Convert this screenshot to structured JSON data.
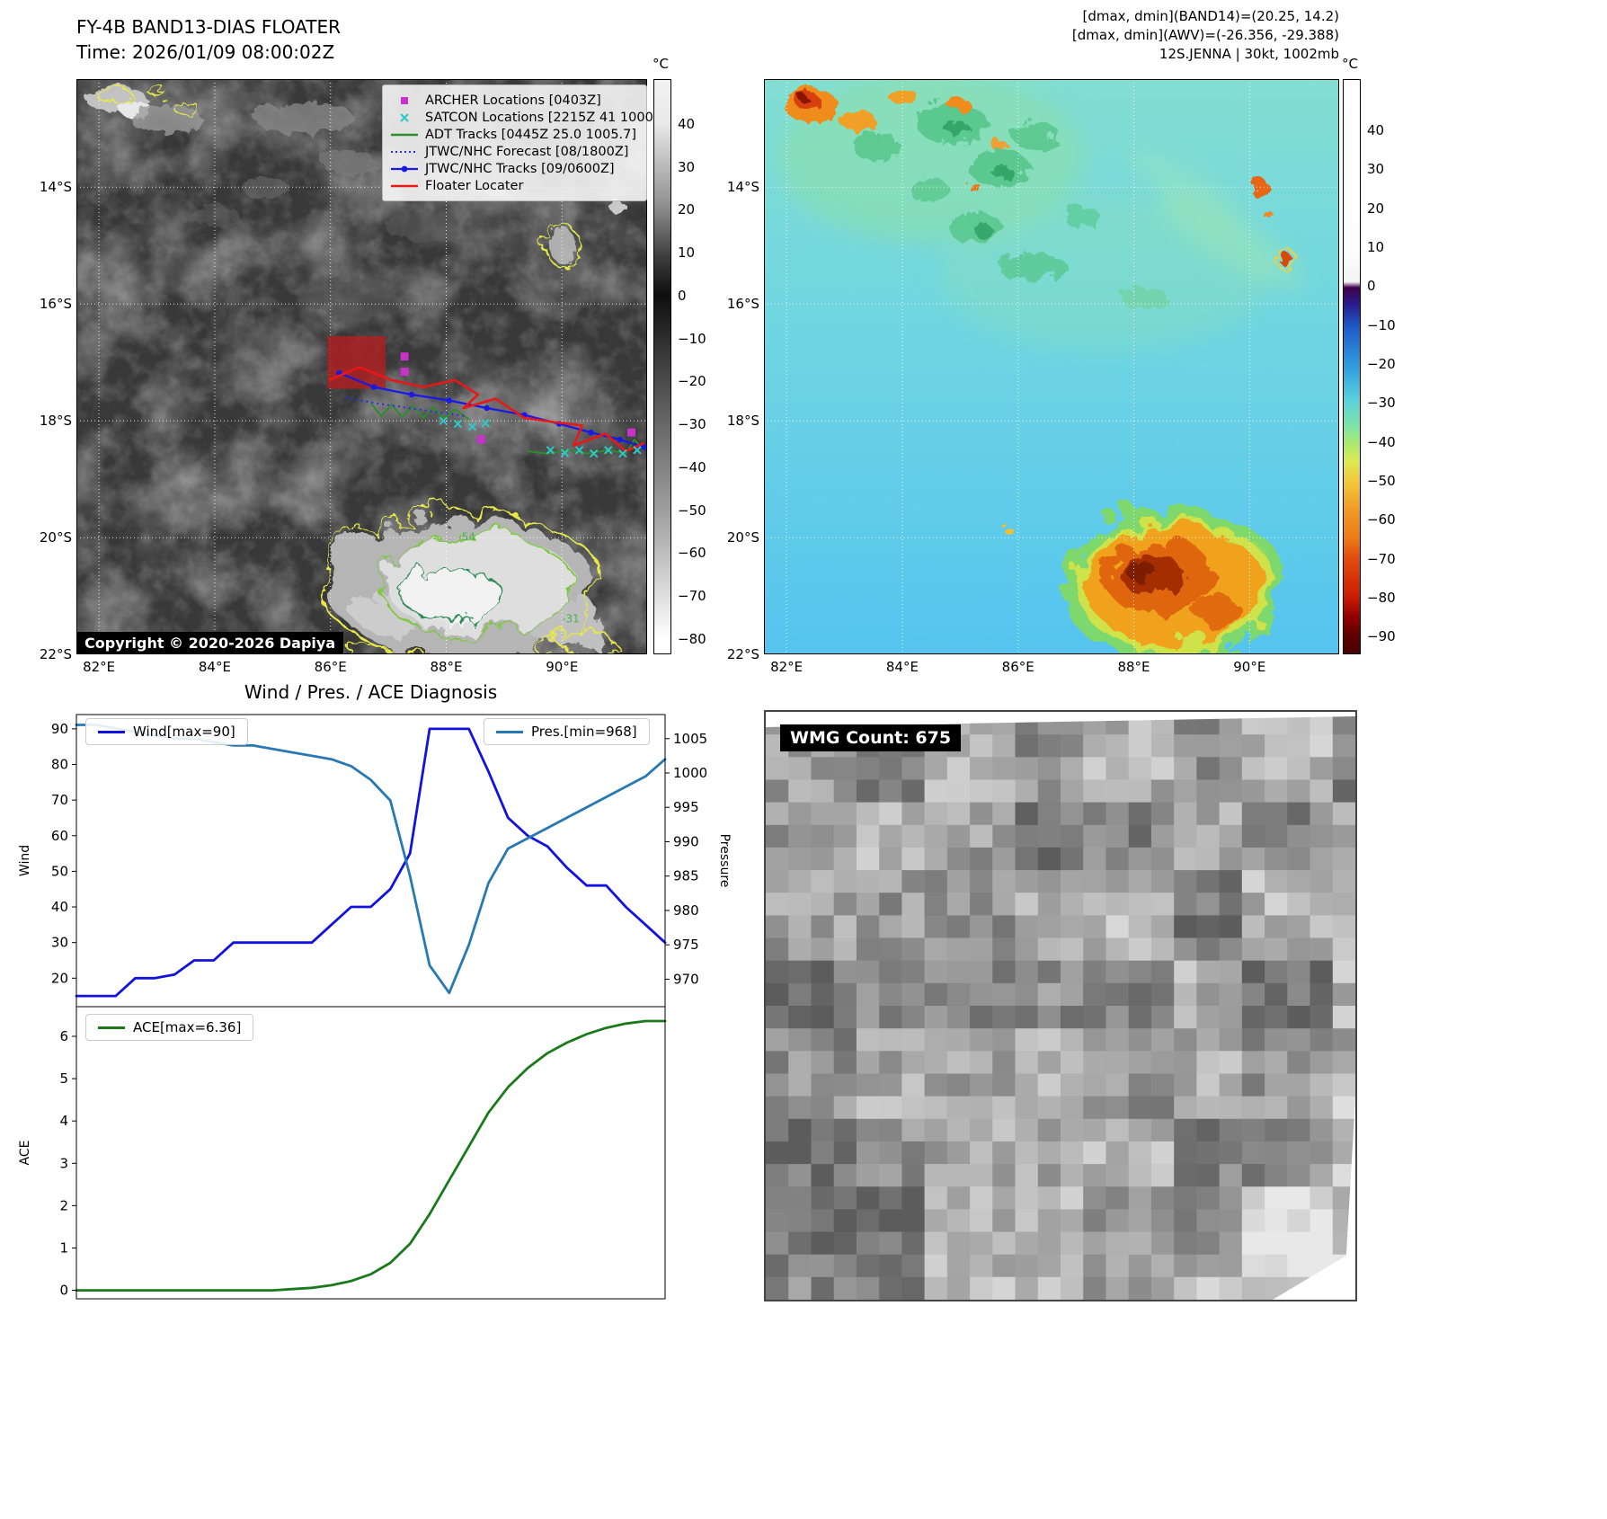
{
  "panel_ir": {
    "title": "FY-4B BAND13-DIAS FLOATER",
    "time_line": "Time: 2026/01/09 08:00:02Z",
    "copyright": "Copyright © 2020-2026 Dapiya",
    "colorbar": {
      "unit": "°C",
      "ticks": [
        40,
        30,
        20,
        10,
        0,
        -10,
        -20,
        -30,
        -40,
        -50,
        -60,
        -70,
        -80
      ]
    },
    "lat_ticks": [
      "14°S",
      "16°S",
      "18°S",
      "20°S",
      "22°S"
    ],
    "lon_ticks": [
      "82°E",
      "84°E",
      "86°E",
      "88°E",
      "90°E"
    ],
    "legend": [
      {
        "label": "ARCHER Locations [0403Z]",
        "marker": "square",
        "color": "#c832c8"
      },
      {
        "label": "SATCON Locations [2215Z 41 1000]",
        "marker": "x",
        "color": "#2ec8c8"
      },
      {
        "label": "ADT Tracks [0445Z 25.0 1005.7]",
        "marker": "line",
        "color": "#2e8b2e"
      },
      {
        "label": "JTWC/NHC Forecast [08/1800Z]",
        "marker": "dotted",
        "color": "#2a2aee"
      },
      {
        "label": "JTWC/NHC Tracks [09/0600Z]",
        "marker": "linedot",
        "color": "#1818e8"
      },
      {
        "label": "Floater Locater",
        "marker": "line",
        "color": "#e81818"
      }
    ],
    "contour_labels": [
      {
        "text": "-54",
        "lon": 88.35,
        "lat": 20.05
      },
      {
        "text": "-31",
        "lon": 90.15,
        "lat": 21.45
      }
    ],
    "tracks": {
      "floater_box": [
        85.95,
        16.55,
        86.95,
        17.45
      ],
      "floater": [
        [
          85.98,
          17.3
        ],
        [
          86.5,
          17.08
        ],
        [
          87.05,
          17.3
        ],
        [
          87.6,
          17.42
        ],
        [
          88.15,
          17.3
        ],
        [
          88.55,
          17.55
        ],
        [
          88.3,
          17.78
        ],
        [
          88.85,
          17.62
        ],
        [
          89.35,
          17.95
        ],
        [
          89.85,
          18.02
        ],
        [
          90.35,
          18.08
        ],
        [
          90.2,
          18.42
        ],
        [
          90.75,
          18.22
        ],
        [
          91.1,
          18.52
        ],
        [
          91.42,
          18.38
        ]
      ],
      "jtwc": [
        [
          86.15,
          17.18
        ],
        [
          86.75,
          17.42
        ],
        [
          87.4,
          17.55
        ],
        [
          88.05,
          17.65
        ],
        [
          88.7,
          17.78
        ],
        [
          89.35,
          17.9
        ],
        [
          89.95,
          18.05
        ],
        [
          90.5,
          18.2
        ],
        [
          91.0,
          18.32
        ],
        [
          91.42,
          18.45
        ]
      ],
      "forecast": [
        [
          86.25,
          17.6
        ],
        [
          86.8,
          17.7
        ],
        [
          87.35,
          17.78
        ],
        [
          87.9,
          17.86
        ],
        [
          88.35,
          17.92
        ]
      ],
      "adt1": [
        [
          86.7,
          17.7
        ],
        [
          86.88,
          17.92
        ],
        [
          87.06,
          17.72
        ],
        [
          87.24,
          17.94
        ],
        [
          87.42,
          17.74
        ],
        [
          87.6,
          17.95
        ],
        [
          87.78,
          17.76
        ],
        [
          87.96,
          17.96
        ],
        [
          88.15,
          17.8
        ],
        [
          88.4,
          17.98
        ]
      ],
      "adt2": [
        [
          89.4,
          18.52
        ],
        [
          89.75,
          18.56
        ],
        [
          90.1,
          18.5
        ],
        [
          90.45,
          18.56
        ],
        [
          90.8,
          18.5
        ],
        [
          91.1,
          18.56
        ],
        [
          91.25,
          18.32
        ],
        [
          91.42,
          18.5
        ]
      ],
      "satcon": [
        [
          87.95,
          18.0
        ],
        [
          88.2,
          18.05
        ],
        [
          88.45,
          18.1
        ],
        [
          88.68,
          18.04
        ],
        [
          89.8,
          18.5
        ],
        [
          90.05,
          18.55
        ],
        [
          90.3,
          18.5
        ],
        [
          90.55,
          18.56
        ],
        [
          90.8,
          18.5
        ],
        [
          91.05,
          18.56
        ],
        [
          91.3,
          18.5
        ]
      ],
      "archer": [
        [
          87.28,
          16.9
        ],
        [
          87.28,
          17.16
        ],
        [
          88.6,
          18.32
        ],
        [
          91.2,
          18.2
        ]
      ]
    }
  },
  "panel_awv": {
    "annotations": [
      "[dmax, dmin](BAND14)=(20.25, 14.2)",
      "[dmax, dmin](AWV)=(-26.356, -29.388)",
      "12S.JENNA | 30kt, 1002mb"
    ],
    "colorbar": {
      "unit": "°C",
      "ticks": [
        40,
        30,
        20,
        10,
        0,
        -10,
        -20,
        -30,
        -40,
        -50,
        -60,
        -70,
        -80,
        -90
      ]
    },
    "lat_ticks": [
      "14°S",
      "16°S",
      "18°S",
      "20°S",
      "22°S"
    ],
    "lon_ticks": [
      "82°E",
      "84°E",
      "86°E",
      "88°E",
      "90°E"
    ]
  },
  "diagnosis_title": "Wind / Pres. / ACE Diagnosis",
  "chart_data": [
    {
      "type": "line",
      "title": "Wind / Pres. / ACE Diagnosis",
      "x": [
        0,
        1,
        2,
        3,
        4,
        5,
        6,
        7,
        8,
        9,
        10,
        11,
        12,
        13,
        14,
        15,
        16,
        17,
        18,
        19,
        20,
        21,
        22,
        23,
        24,
        25,
        26,
        27,
        28,
        29,
        30
      ],
      "series": [
        {
          "name": "Wind[max=90]",
          "axis": "left",
          "color": "#1212e0",
          "values": [
            15,
            15,
            15,
            20,
            20,
            21,
            25,
            25,
            30,
            30,
            30,
            30,
            30,
            35,
            40,
            40,
            45,
            55,
            90,
            90,
            90,
            78,
            65,
            60,
            57,
            51,
            46,
            46,
            40,
            35,
            30
          ]
        },
        {
          "name": "Pres.[min=968]",
          "axis": "right",
          "color": "#2878b4",
          "values": [
            1007,
            1007,
            1006.5,
            1006,
            1005.5,
            1005,
            1005,
            1004.5,
            1004,
            1004,
            1003.5,
            1003,
            1002.5,
            1002,
            1001,
            999,
            996,
            985,
            972,
            968,
            975,
            984,
            989,
            990.5,
            992,
            993.5,
            995,
            996.5,
            998,
            999.5,
            1002
          ]
        }
      ],
      "ylabel_left": "Wind",
      "ylabel_right": "Pressure",
      "yticks_left": [
        20,
        30,
        40,
        50,
        60,
        70,
        80,
        90
      ],
      "yticks_right": [
        970,
        975,
        980,
        985,
        990,
        995,
        1000,
        1005
      ],
      "ylim_left": [
        12,
        94
      ],
      "ylim_right": [
        966,
        1008.5
      ],
      "grid": false,
      "legend_position": "top-left and top-right inside axes"
    },
    {
      "type": "line",
      "series": [
        {
          "name": "ACE[max=6.36]",
          "color": "#1a7a1a",
          "values": [
            0,
            0,
            0,
            0,
            0,
            0,
            0,
            0,
            0,
            0,
            0,
            0.03,
            0.06,
            0.12,
            0.22,
            0.38,
            0.65,
            1.1,
            1.8,
            2.6,
            3.4,
            4.2,
            4.8,
            5.25,
            5.6,
            5.85,
            6.05,
            6.2,
            6.3,
            6.36,
            6.36
          ]
        }
      ],
      "ylabel": "ACE",
      "yticks": [
        0,
        1,
        2,
        3,
        4,
        5,
        6
      ],
      "ylim": [
        -0.2,
        6.7
      ],
      "grid": false,
      "legend_position": "top-left inside axes"
    }
  ],
  "panel_wmg": {
    "label": "WMG Count: 675"
  }
}
